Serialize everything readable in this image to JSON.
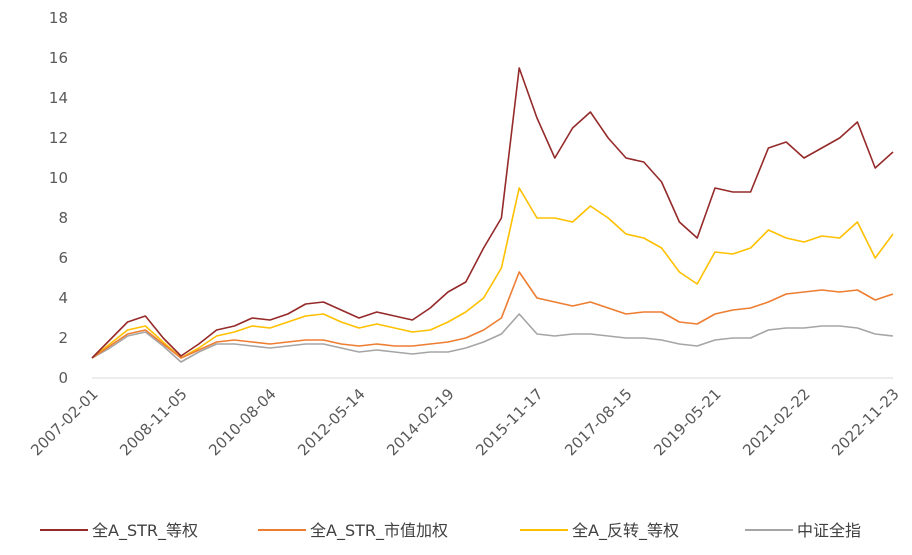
{
  "chart_data": {
    "type": "line",
    "categories": [
      "2007-02-01",
      null,
      null,
      null,
      null,
      "2008-11-05",
      null,
      null,
      null,
      null,
      "2010-08-04",
      null,
      null,
      null,
      null,
      "2012-05-14",
      null,
      null,
      null,
      null,
      "2014-02-19",
      null,
      null,
      null,
      null,
      "2015-11-17",
      null,
      null,
      null,
      null,
      "2017-08-15",
      null,
      null,
      null,
      null,
      "2019-05-21",
      null,
      null,
      null,
      null,
      "2021-02-22",
      null,
      null,
      null,
      null,
      "2022-11-23"
    ],
    "series": [
      {
        "name": "全A_STR_等权",
        "color": "#952a2a",
        "values": [
          1.0,
          1.9,
          2.8,
          3.1,
          2.0,
          1.1,
          1.7,
          2.4,
          2.6,
          3.0,
          2.9,
          3.2,
          3.7,
          3.8,
          3.4,
          3.0,
          3.3,
          3.1,
          2.9,
          3.5,
          4.3,
          4.8,
          6.5,
          8.0,
          15.5,
          13.0,
          11.0,
          12.5,
          13.3,
          12.0,
          11.0,
          10.8,
          9.8,
          7.8,
          7.0,
          9.5,
          9.3,
          9.3,
          11.5,
          11.8,
          11.0,
          11.5,
          12.0,
          12.8,
          10.5,
          11.3
        ]
      },
      {
        "name": "全A_STR_市值加权",
        "color": "#ed7d31",
        "values": [
          1.0,
          1.6,
          2.2,
          2.4,
          1.7,
          1.0,
          1.4,
          1.8,
          1.9,
          1.8,
          1.7,
          1.8,
          1.9,
          1.9,
          1.7,
          1.6,
          1.7,
          1.6,
          1.6,
          1.7,
          1.8,
          2.0,
          2.4,
          3.0,
          5.3,
          4.0,
          3.8,
          3.6,
          3.8,
          3.5,
          3.2,
          3.3,
          3.3,
          2.8,
          2.7,
          3.2,
          3.4,
          3.5,
          3.8,
          4.2,
          4.3,
          4.4,
          4.3,
          4.4,
          3.9,
          4.2
        ]
      },
      {
        "name": "全A_反转_等权",
        "color": "#ffc000",
        "values": [
          1.0,
          1.7,
          2.4,
          2.6,
          1.8,
          1.0,
          1.5,
          2.1,
          2.3,
          2.6,
          2.5,
          2.8,
          3.1,
          3.2,
          2.8,
          2.5,
          2.7,
          2.5,
          2.3,
          2.4,
          2.8,
          3.3,
          4.0,
          5.5,
          9.5,
          8.0,
          8.0,
          7.8,
          8.6,
          8.0,
          7.2,
          7.0,
          6.5,
          5.3,
          4.7,
          6.3,
          6.2,
          6.5,
          7.4,
          7.0,
          6.8,
          7.1,
          7.0,
          7.8,
          6.0,
          7.2
        ]
      },
      {
        "name": "中证全指",
        "color": "#a5a5a5",
        "values": [
          1.0,
          1.5,
          2.1,
          2.3,
          1.6,
          0.8,
          1.3,
          1.7,
          1.7,
          1.6,
          1.5,
          1.6,
          1.7,
          1.7,
          1.5,
          1.3,
          1.4,
          1.3,
          1.2,
          1.3,
          1.3,
          1.5,
          1.8,
          2.2,
          3.2,
          2.2,
          2.1,
          2.2,
          2.2,
          2.1,
          2.0,
          2.0,
          1.9,
          1.7,
          1.6,
          1.9,
          2.0,
          2.0,
          2.4,
          2.5,
          2.5,
          2.6,
          2.6,
          2.5,
          2.2,
          2.1
        ]
      }
    ],
    "ylim": [
      0,
      18
    ],
    "yticks": [
      0,
      2,
      4,
      6,
      8,
      10,
      12,
      14,
      16,
      18
    ],
    "grid": false,
    "legend": "bottom"
  }
}
